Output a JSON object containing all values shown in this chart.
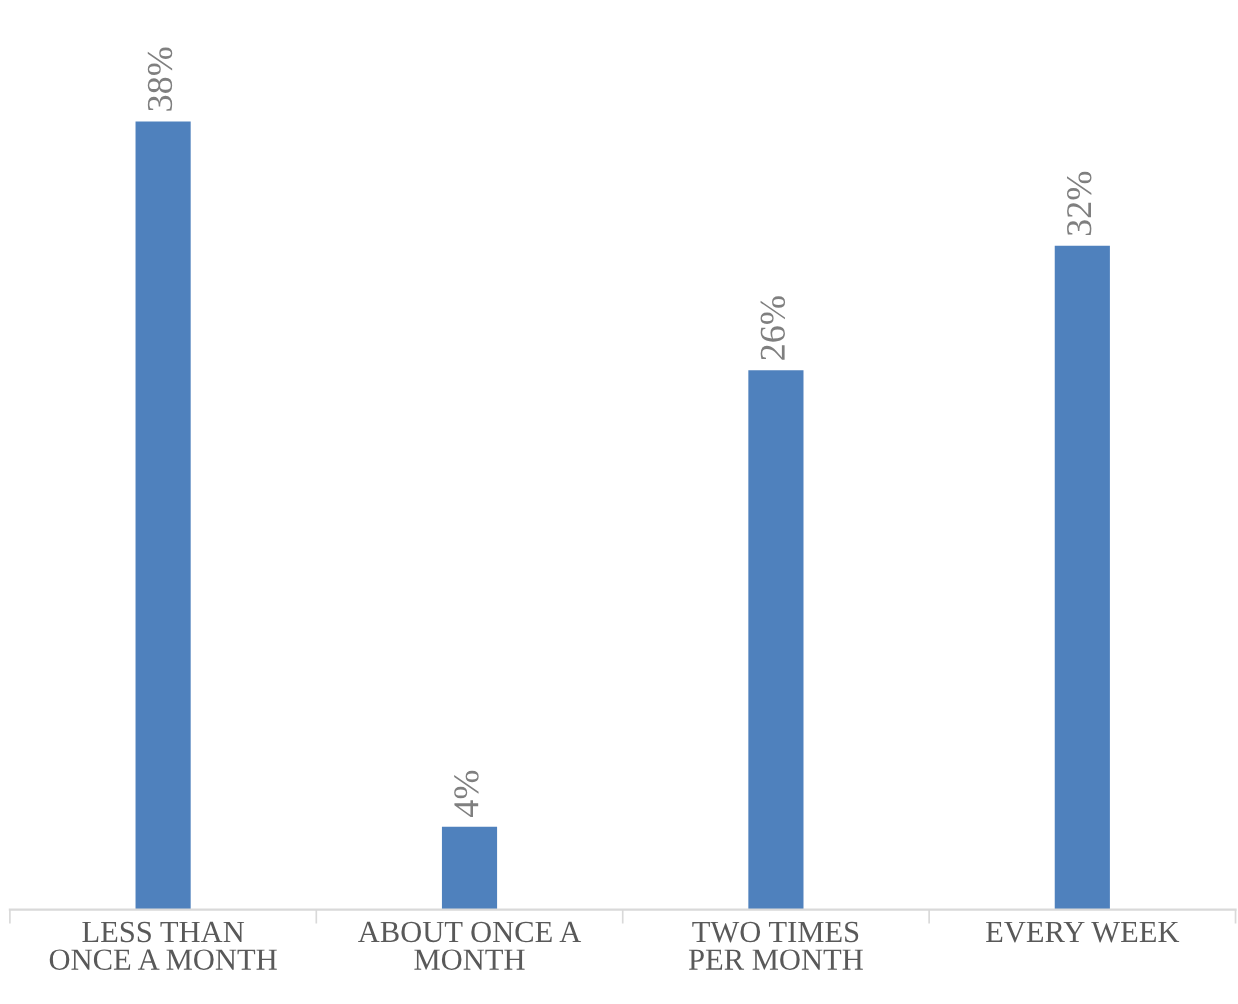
{
  "chart_data": {
    "type": "bar",
    "categories": [
      "LESS THAN\nONCE A MONTH",
      "ABOUT ONCE A\nMONTH",
      "TWO TIMES\nPER MONTH",
      "EVERY WEEK"
    ],
    "values": [
      38,
      4,
      26,
      32
    ],
    "value_labels": [
      "38%",
      "4%",
      "26%",
      "32%"
    ],
    "color": "#4f81bd",
    "tick_labels": "x",
    "grid": false
  }
}
